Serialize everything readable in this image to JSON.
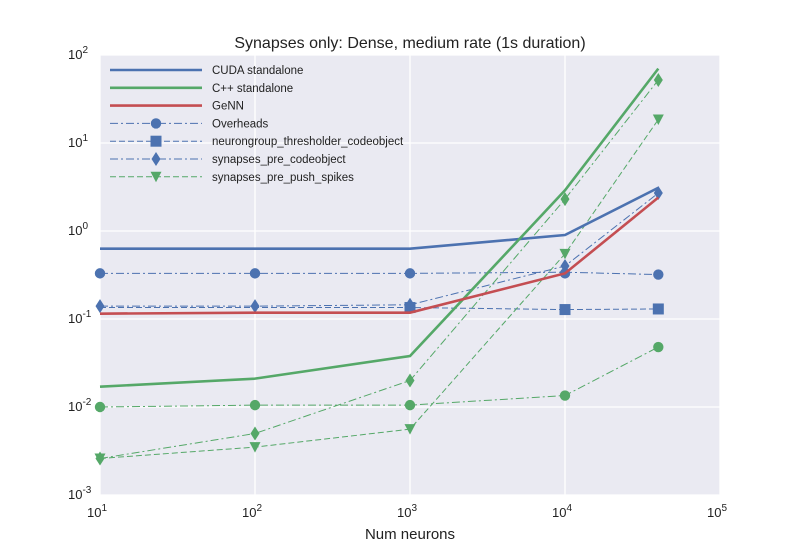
{
  "chart_data": {
    "type": "line",
    "title": "Synapses only: Dense, medium rate (1s duration)",
    "xlabel": "Num neurons",
    "ylabel": "",
    "x_scale": "log",
    "y_scale": "log",
    "xlim": [
      10,
      100000
    ],
    "ylim": [
      0.001,
      100
    ],
    "grid": true,
    "background": "#EAEAF2",
    "x_ticks": [
      {
        "value": 10,
        "base": "10",
        "exp": "1"
      },
      {
        "value": 100,
        "base": "10",
        "exp": "2"
      },
      {
        "value": 1000,
        "base": "10",
        "exp": "3"
      },
      {
        "value": 10000,
        "base": "10",
        "exp": "4"
      },
      {
        "value": 100000,
        "base": "10",
        "exp": "5"
      }
    ],
    "y_ticks": [
      {
        "value": 0.001,
        "base": "10",
        "exp": "-3"
      },
      {
        "value": 0.01,
        "base": "10",
        "exp": "-2"
      },
      {
        "value": 0.1,
        "base": "10",
        "exp": "-1"
      },
      {
        "value": 1,
        "base": "10",
        "exp": "0"
      },
      {
        "value": 10,
        "base": "10",
        "exp": "1"
      },
      {
        "value": 100,
        "base": "10",
        "exp": "2"
      }
    ],
    "legend_position": "top-left",
    "series": [
      {
        "name": "CUDA standalone",
        "color": "#4C72B0",
        "style": "solid",
        "marker": "none",
        "width": 2.6,
        "points": [
          [
            10,
            0.63
          ],
          [
            100,
            0.63
          ],
          [
            1000,
            0.63
          ],
          [
            10000,
            0.9
          ],
          [
            40000,
            3.1
          ]
        ],
        "marker_points": []
      },
      {
        "name": "C++ standalone",
        "color": "#55A868",
        "style": "solid",
        "marker": "none",
        "width": 2.6,
        "points": [
          [
            10,
            0.017
          ],
          [
            100,
            0.021
          ],
          [
            1000,
            0.038
          ],
          [
            10000,
            2.9
          ],
          [
            40000,
            70
          ]
        ],
        "marker_points": []
      },
      {
        "name": "GeNN",
        "color": "#C44E52",
        "style": "solid",
        "marker": "none",
        "width": 2.6,
        "points": [
          [
            10,
            0.115
          ],
          [
            100,
            0.118
          ],
          [
            1000,
            0.118
          ],
          [
            10000,
            0.33
          ],
          [
            40000,
            2.4
          ]
        ],
        "marker_points": []
      },
      {
        "name": "Overheads",
        "color": "#4C72B0",
        "style": "dashdot",
        "marker": "circle",
        "width": 1,
        "points": [
          [
            10,
            0.33
          ],
          [
            100,
            0.33
          ],
          [
            1000,
            0.33
          ],
          [
            10000,
            0.34
          ],
          [
            40000,
            0.32
          ]
        ],
        "marker_points": [
          [
            10,
            0.33
          ],
          [
            100,
            0.33
          ],
          [
            1000,
            0.33
          ],
          [
            10000,
            0.33
          ],
          [
            40000,
            0.32
          ]
        ],
        "extra_series": {
          "color": "#55A868",
          "points": [
            [
              10,
              0.01
            ],
            [
              100,
              0.0105
            ],
            [
              1000,
              0.0105
            ],
            [
              10000,
              0.0135
            ],
            [
              40000,
              0.048
            ]
          ]
        }
      },
      {
        "name": "neurongroup_thresholder_codeobject",
        "color": "#4C72B0",
        "style": "dashed",
        "marker": "square",
        "width": 1,
        "points": [
          [
            10,
            0.135
          ],
          [
            100,
            0.135
          ],
          [
            1000,
            0.135
          ],
          [
            10000,
            0.128
          ],
          [
            40000,
            0.13
          ]
        ],
        "marker_points": [
          [
            1000,
            0.135
          ],
          [
            10000,
            0.128
          ],
          [
            40000,
            0.13
          ]
        ]
      },
      {
        "name": "synapses_pre_codeobject",
        "color": "#4C72B0",
        "style": "dashdot",
        "marker": "diamond",
        "width": 1,
        "points": [
          [
            10,
            0.14
          ],
          [
            100,
            0.14
          ],
          [
            1000,
            0.145
          ],
          [
            10000,
            0.4
          ],
          [
            40000,
            2.7
          ]
        ],
        "marker_points": [
          [
            10,
            0.14
          ],
          [
            100,
            0.14
          ],
          [
            1000,
            0.145
          ],
          [
            10000,
            0.4
          ],
          [
            40000,
            2.7
          ]
        ],
        "extra_series": {
          "color": "#55A868",
          "points": [
            [
              10,
              0.0026
            ],
            [
              100,
              0.005
            ],
            [
              1000,
              0.02
            ],
            [
              10000,
              2.3
            ],
            [
              40000,
              52
            ]
          ]
        }
      },
      {
        "name": "synapses_pre_push_spikes",
        "color": "#55A868",
        "style": "dashed",
        "marker": "triangle-down",
        "width": 1,
        "points": [
          [
            10,
            0.0026
          ],
          [
            100,
            0.0035
          ],
          [
            1000,
            0.0056
          ],
          [
            10000,
            0.55
          ],
          [
            40000,
            18.5
          ]
        ],
        "marker_points": [
          [
            10,
            0.0026
          ],
          [
            100,
            0.0035
          ],
          [
            1000,
            0.0056
          ],
          [
            10000,
            0.55
          ],
          [
            40000,
            18.5
          ]
        ]
      }
    ]
  }
}
